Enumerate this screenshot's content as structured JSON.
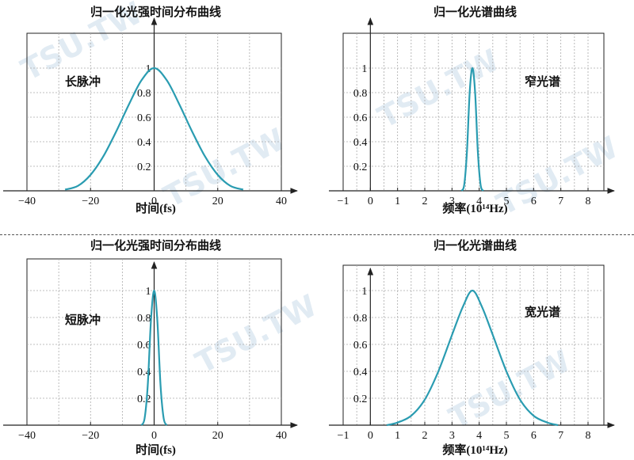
{
  "watermark": {
    "text": "TSU.TW",
    "color": "#78a5c8"
  },
  "colors": {
    "curve": "#2a9cb1",
    "grid": "#aaaaaa",
    "axis": "#222222"
  },
  "chart_data": [
    {
      "id": "tl",
      "type": "line",
      "title": "归一化光强时间分布曲线",
      "xlabel": "时间(fs)",
      "annotation": "长脉冲",
      "xlim": [
        -40,
        40
      ],
      "ylim": [
        0,
        1.2
      ],
      "grid": true,
      "x_ticks": [
        -40,
        -20,
        0,
        20,
        40
      ],
      "x_tick_labels": [
        "−40",
        "−20",
        "0",
        "20",
        "40"
      ],
      "y_ticks": [
        0.2,
        0.4,
        0.6,
        0.8,
        1
      ],
      "y_tick_labels": [
        "0.2",
        "0.4",
        "0.6",
        "0.8",
        "1"
      ],
      "series": [
        {
          "x": [
            -28,
            -24,
            -20,
            -16,
            -12,
            -8,
            -4,
            0,
            4,
            8,
            12,
            16,
            20,
            24,
            28
          ],
          "values": [
            0.01,
            0.04,
            0.13,
            0.28,
            0.48,
            0.7,
            0.9,
            1.0,
            0.9,
            0.7,
            0.48,
            0.28,
            0.13,
            0.04,
            0.01
          ]
        }
      ]
    },
    {
      "id": "tr",
      "type": "line",
      "title": "归一化光谱曲线",
      "xlabel": "频率(10¹⁴Hz)",
      "annotation": "窄光谱",
      "xlim": [
        -1,
        8.5
      ],
      "ylim": [
        0,
        1.2
      ],
      "grid": true,
      "x_ticks": [
        -1,
        0,
        1,
        2,
        3,
        4,
        5,
        6,
        7,
        8
      ],
      "x_tick_labels": [
        "−1",
        "0",
        "1",
        "2",
        "3",
        "4",
        "5",
        "6",
        "7",
        "8"
      ],
      "y_ticks": [
        0.2,
        0.4,
        0.6,
        0.8,
        1
      ],
      "y_tick_labels": [
        "0.2",
        "0.4",
        "0.6",
        "0.8",
        "1"
      ],
      "series": [
        {
          "x": [
            3.35,
            3.45,
            3.55,
            3.65,
            3.75,
            3.85,
            3.95,
            4.05,
            4.15
          ],
          "values": [
            0.0,
            0.05,
            0.32,
            0.8,
            1.0,
            0.8,
            0.32,
            0.05,
            0.0
          ]
        }
      ]
    },
    {
      "id": "bl",
      "type": "line",
      "title": "归一化光强时间分布曲线",
      "xlabel": "时间(fs)",
      "annotation": "短脉冲",
      "xlim": [
        -40,
        40
      ],
      "ylim": [
        0,
        1.2
      ],
      "grid": true,
      "x_ticks": [
        -40,
        -20,
        0,
        20,
        40
      ],
      "x_tick_labels": [
        "−40",
        "−20",
        "0",
        "20",
        "40"
      ],
      "y_ticks": [
        0.2,
        0.4,
        0.6,
        0.8,
        1
      ],
      "y_tick_labels": [
        "0.2",
        "0.4",
        "0.6",
        "0.8",
        "1"
      ],
      "series": [
        {
          "x": [
            -4,
            -3,
            -2,
            -1,
            0,
            1,
            2,
            3,
            4
          ],
          "values": [
            0.0,
            0.05,
            0.3,
            0.78,
            1.0,
            0.78,
            0.3,
            0.05,
            0.0
          ]
        }
      ]
    },
    {
      "id": "br",
      "type": "line",
      "title": "归一化光谱曲线",
      "xlabel": "频率(10¹⁴Hz)",
      "annotation": "宽光谱",
      "xlim": [
        -1,
        8.5
      ],
      "ylim": [
        0,
        1.2
      ],
      "grid": true,
      "x_ticks": [
        -1,
        0,
        1,
        2,
        3,
        4,
        5,
        6,
        7,
        8
      ],
      "x_tick_labels": [
        "−1",
        "0",
        "1",
        "2",
        "3",
        "4",
        "5",
        "6",
        "7",
        "8"
      ],
      "y_ticks": [
        0.2,
        0.4,
        0.6,
        0.8,
        1
      ],
      "y_tick_labels": [
        "0.2",
        "0.4",
        "0.6",
        "0.8",
        "1"
      ],
      "series": [
        {
          "x": [
            0.6,
            1.0,
            1.5,
            2.0,
            2.5,
            3.0,
            3.4,
            3.75,
            4.1,
            4.5,
            5.0,
            5.5,
            6.0,
            6.5,
            6.9
          ],
          "values": [
            0.0,
            0.02,
            0.07,
            0.19,
            0.4,
            0.67,
            0.88,
            1.0,
            0.88,
            0.67,
            0.4,
            0.19,
            0.07,
            0.02,
            0.0
          ]
        }
      ]
    }
  ]
}
